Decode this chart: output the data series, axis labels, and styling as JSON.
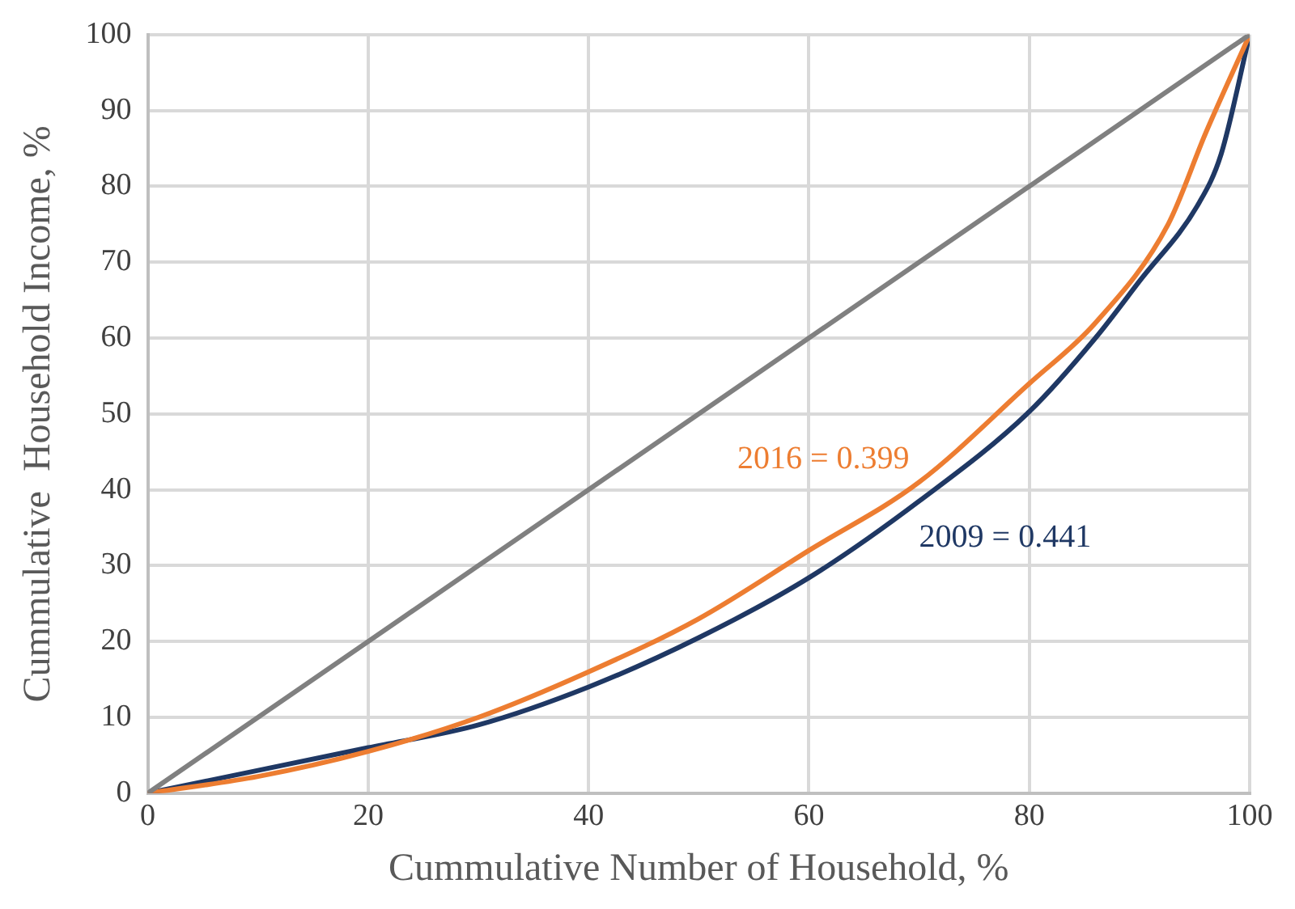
{
  "chart_data": {
    "type": "line",
    "xlabel": "Cummulative Number of Household, %",
    "ylabel": "Cummulative  Household Income, %",
    "xlim": [
      0,
      100
    ],
    "xticks": [
      0,
      20,
      40,
      60,
      80,
      100
    ],
    "ylim": [
      0,
      100
    ],
    "yticks": [
      0,
      10,
      20,
      30,
      40,
      50,
      60,
      70,
      80,
      90,
      100
    ],
    "grid": true,
    "legend": false,
    "marker": "none",
    "line_style": "solid",
    "series": [
      {
        "color": "#808080",
        "x": [
          0,
          100
        ],
        "values": [
          0,
          100
        ]
      },
      {
        "name": "2016 = 0.399",
        "color": "#ed7d31",
        "x": [
          0,
          10,
          20,
          30,
          40,
          50,
          60,
          70,
          80,
          86,
          92.6,
          96,
          100
        ],
        "values": [
          0,
          2.2,
          5.5,
          10,
          16,
          23,
          32,
          41,
          54,
          62,
          75,
          87,
          100
        ]
      },
      {
        "name": "2009 = 0.441",
        "color": "#1f3864",
        "x": [
          0,
          10,
          20,
          30,
          40,
          50,
          60,
          70,
          80,
          86,
          90,
          95.4,
          97.4,
          100
        ],
        "values": [
          0,
          3,
          6,
          9,
          14,
          20.5,
          28.4,
          38.5,
          50.3,
          60,
          67.5,
          77.8,
          84.2,
          100
        ]
      }
    ]
  }
}
